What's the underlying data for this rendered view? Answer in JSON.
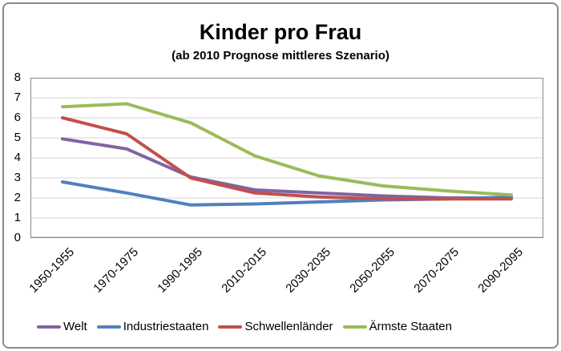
{
  "title": "Kinder pro Frau",
  "subtitle": "(ab 2010 Prognose mittleres Szenario)",
  "chart_data": {
    "type": "line",
    "title": "Kinder pro Frau",
    "subtitle": "(ab 2010 Prognose mittleres Szenario)",
    "categories": [
      "1950-1955",
      "1970-1975",
      "1990-1995",
      "2010-2015",
      "2030-2035",
      "2050-2055",
      "2070-2075",
      "2090-2095"
    ],
    "series": [
      {
        "name": "Welt",
        "color": "#8064A2",
        "values": [
          4.95,
          4.45,
          3.05,
          2.4,
          2.25,
          2.1,
          2.0,
          2.0
        ]
      },
      {
        "name": "Industriestaaten",
        "color": "#4F81BD",
        "values": [
          2.8,
          2.25,
          1.65,
          1.7,
          1.8,
          1.9,
          1.95,
          2.05
        ]
      },
      {
        "name": "Schwellenländer",
        "color": "#C0504D",
        "values": [
          6.0,
          5.2,
          3.0,
          2.25,
          2.05,
          1.95,
          1.95,
          1.95
        ]
      },
      {
        "name": "Ärmste Staaten",
        "color": "#9BBB59",
        "values": [
          6.55,
          6.7,
          5.75,
          4.1,
          3.1,
          2.6,
          2.35,
          2.15
        ]
      }
    ],
    "xlabel": "",
    "ylabel": "",
    "ylim": [
      0,
      8
    ],
    "yticks": [
      0,
      1,
      2,
      3,
      4,
      5,
      6,
      7,
      8
    ],
    "grid": "horizontal",
    "legend_position": "bottom"
  },
  "colors": {
    "frame_border": "#8a8a8a",
    "plot_border": "#898989",
    "gridline": "#d6d6d6",
    "axis_line": "#808080",
    "text": "#000000",
    "background": "#ffffff"
  }
}
